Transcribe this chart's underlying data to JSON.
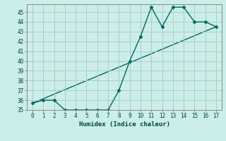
{
  "x": [
    0,
    1,
    2,
    3,
    4,
    5,
    6,
    7,
    8,
    9,
    10,
    11,
    12,
    13,
    14,
    15,
    16,
    17
  ],
  "y_zigzag": [
    35.7,
    36.0,
    36.0,
    35.0,
    35.0,
    35.0,
    35.0,
    35.0,
    37.0,
    40.0,
    42.5,
    45.5,
    43.5,
    45.5,
    45.5,
    44.0,
    44.0,
    43.5
  ],
  "line_color": "#006868",
  "background_color": "#cceee8",
  "grid_color": "#aacccc",
  "xlabel": "Humidex (Indice chaleur)",
  "ylim": [
    35,
    45.8
  ],
  "xlim": [
    -0.5,
    17.5
  ],
  "yticks": [
    35,
    36,
    37,
    38,
    39,
    40,
    41,
    42,
    43,
    44,
    45
  ],
  "xticks": [
    0,
    1,
    2,
    3,
    4,
    5,
    6,
    7,
    8,
    9,
    10,
    11,
    12,
    13,
    14,
    15,
    16,
    17
  ],
  "marker_size": 2.5,
  "line_width": 1.0
}
